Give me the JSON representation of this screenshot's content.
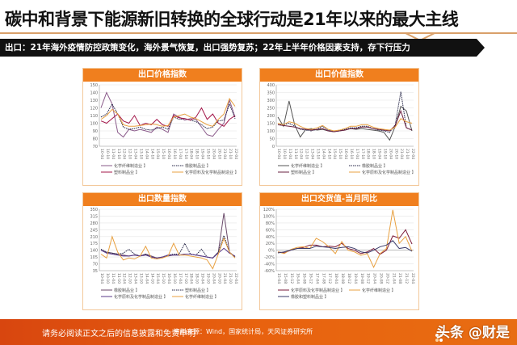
{
  "header": {
    "title": "碳中和背景下能源新旧转换的全球行动是21年以来的最大主线",
    "banner": "出口：21年海外疫情防控政策变化，海外景气恢复，出口强势复苏；22年上半年价格因素支持，存下行压力"
  },
  "colors": {
    "accent_orange": "#f07f1e",
    "banner_bg": "#111111",
    "footer_bg": "#e05a10",
    "series_fiber": "#8a5a8a",
    "series_rubber": "#222244",
    "series_plastic": "#a3174a",
    "series_raw": "#e8a040"
  },
  "panels": [
    {
      "title": "出口价格指数"
    },
    {
      "title": "出口价值指数"
    },
    {
      "title": "出口数量指数"
    },
    {
      "title": "出口交货值-当月同比"
    }
  ],
  "chart_data": [
    {
      "type": "line",
      "title": "出口价格指数",
      "ylim": [
        70,
        150
      ],
      "yticks": [
        "150",
        "140",
        "130",
        "120",
        "110",
        "100",
        "90",
        "80",
        "70"
      ],
      "x": [
        "10-04",
        "10-10",
        "11-04",
        "11-10",
        "12-04",
        "12-10",
        "13-04",
        "13-10",
        "14-04",
        "14-10",
        "15-04",
        "15-10",
        "16-04",
        "16-10",
        "17-04",
        "17-10",
        "18-04",
        "18-10",
        "19-04",
        "19-10",
        "20-04",
        "20-10",
        "21-04",
        "21-10",
        "22-04"
      ],
      "series": [
        {
          "name": "化学纤维制造业 】",
          "values": [
            120,
            140,
            125,
            88,
            82,
            92,
            90,
            92,
            90,
            88,
            95,
            92,
            88,
            112,
            108,
            104,
            106,
            105,
            95,
            85,
            83,
            92,
            100,
            130,
            108
          ]
        },
        {
          "name": "橡胶制品业 】",
          "values": [
            108,
            112,
            125,
            112,
            95,
            92,
            93,
            95,
            92,
            91,
            93,
            95,
            92,
            108,
            105,
            106,
            104,
            102,
            98,
            93,
            95,
            103,
            104,
            125,
            106
          ]
        },
        {
          "name": "塑料制品业 】",
          "values": [
            103,
            100,
            106,
            112,
            103,
            100,
            110,
            97,
            100,
            98,
            105,
            98,
            96,
            110,
            107,
            106,
            104,
            108,
            120,
            105,
            112,
            100,
            96,
            105,
            110
          ]
        },
        {
          "name": "化学原料及化学制品制造业 】",
          "values": [
            105,
            110,
            118,
            112,
            98,
            96,
            96,
            97,
            98,
            99,
            98,
            96,
            97,
            108,
            110,
            112,
            108,
            106,
            102,
            98,
            96,
            105,
            112,
            132,
            122
          ]
        }
      ],
      "legend_position": "bottom"
    },
    {
      "type": "line",
      "title": "出口价值指数",
      "ylim": [
        0,
        400
      ],
      "yticks": [
        "400",
        "350",
        "300",
        "250",
        "200",
        "150",
        "100",
        "50",
        "0"
      ],
      "x": [
        "10-04",
        "10-10",
        "11-04",
        "11-10",
        "12-04",
        "12-10",
        "13-04",
        "13-10",
        "14-04",
        "14-10",
        "15-04",
        "15-10",
        "16-04",
        "16-10",
        "17-04",
        "17-10",
        "18-04",
        "18-10",
        "19-04",
        "19-10",
        "20-04",
        "20-10",
        "21-04",
        "21-10",
        "22-04"
      ],
      "series": [
        {
          "name": "化学纤维制造业 】",
          "values": [
            190,
            130,
            295,
            140,
            60,
            110,
            115,
            105,
            110,
            100,
            95,
            100,
            105,
            115,
            110,
            115,
            110,
            105,
            100,
            90,
            40,
            130,
            260,
            230,
            100
          ]
        },
        {
          "name": "橡胶制品业 】",
          "values": [
            140,
            140,
            150,
            130,
            110,
            105,
            100,
            110,
            130,
            105,
            95,
            100,
            110,
            120,
            120,
            130,
            130,
            115,
            105,
            100,
            90,
            140,
            355,
            120,
            105
          ]
        },
        {
          "name": "塑料制品业 】",
          "values": [
            140,
            135,
            130,
            125,
            115,
            110,
            105,
            110,
            115,
            100,
            95,
            100,
            105,
            115,
            115,
            125,
            125,
            115,
            110,
            105,
            100,
            135,
            230,
            120,
            105
          ]
        },
        {
          "name": "化学原料及化学制品制造业 】",
          "values": [
            150,
            140,
            160,
            150,
            130,
            115,
            110,
            120,
            135,
            110,
            100,
            105,
            115,
            130,
            130,
            140,
            140,
            125,
            115,
            110,
            105,
            125,
            180,
            160,
            150
          ]
        }
      ],
      "legend_position": "bottom"
    },
    {
      "type": "line",
      "title": "出口数量指数",
      "ylim": [
        35,
        350
      ],
      "yticks": [
        "350",
        "315",
        "280",
        "245",
        "210",
        "175",
        "140",
        "105",
        "70",
        "35"
      ],
      "x": [
        "10-04",
        "10-10",
        "11-04",
        "11-10",
        "12-04",
        "12-10",
        "13-04",
        "13-10",
        "14-04",
        "14-10",
        "15-04",
        "15-10",
        "16-04",
        "16-10",
        "17-04",
        "17-10",
        "18-04",
        "18-10",
        "19-04",
        "19-10",
        "20-04",
        "20-10",
        "21-04",
        "21-10",
        "22-04"
      ],
      "series": [
        {
          "name": "橡胶制品业 】",
          "values": [
            140,
            130,
            125,
            120,
            115,
            110,
            115,
            110,
            120,
            110,
            100,
            105,
            110,
            115,
            115,
            120,
            120,
            115,
            110,
            105,
            100,
            130,
            330,
            130,
            105
          ]
        },
        {
          "name": "塑料制品业 】",
          "values": [
            145,
            130,
            125,
            120,
            125,
            145,
            120,
            110,
            120,
            105,
            100,
            105,
            115,
            120,
            120,
            175,
            120,
            115,
            145,
            105,
            100,
            130,
            215,
            130,
            105
          ]
        },
        {
          "name": "化学原料及化学制品制造业 】",
          "values": [
            140,
            125,
            120,
            115,
            110,
            110,
            115,
            110,
            115,
            105,
            100,
            105,
            115,
            115,
            115,
            120,
            120,
            115,
            110,
            105,
            100,
            125,
            150,
            125,
            110
          ]
        },
        {
          "name": "化学纤维制造业 】",
          "values": [
            120,
            100,
            210,
            130,
            90,
            100,
            95,
            110,
            160,
            100,
            95,
            100,
            110,
            175,
            115,
            115,
            110,
            105,
            100,
            90,
            45,
            120,
            200,
            130,
            100
          ]
        }
      ],
      "legend_position": "bottom"
    },
    {
      "type": "line",
      "title": "出口交货值-当月同比",
      "ylim": [
        -60,
        120
      ],
      "yticks": [
        "120%",
        "100%",
        "80%",
        "60%",
        "40%",
        "20%",
        "0%",
        "-20%",
        "-40%",
        "-60%"
      ],
      "x": [
        "15-04",
        "15-08",
        "15-12",
        "16-04",
        "16-08",
        "16-12",
        "17-04",
        "17-08",
        "17-12",
        "18-04",
        "18-08",
        "18-12",
        "19-04",
        "19-08",
        "19-12",
        "20-04",
        "20-08",
        "20-12",
        "21-04",
        "21-08",
        "21-12",
        "22-04"
      ],
      "series": [
        {
          "name": "化学原料及化学制品制造业 】",
          "values": [
            -5,
            -8,
            0,
            5,
            8,
            15,
            15,
            10,
            12,
            10,
            20,
            5,
            0,
            -10,
            -5,
            5,
            -12,
            0,
            42,
            35,
            60,
            18
          ]
        },
        {
          "name": "化学纤维制造业 】",
          "values": [
            -5,
            -10,
            2,
            8,
            10,
            5,
            35,
            25,
            10,
            -10,
            25,
            0,
            -5,
            -15,
            -10,
            -50,
            -10,
            5,
            118,
            20,
            40,
            -3
          ]
        },
        {
          "name": "橡胶和塑料制品业 】",
          "values": [
            -8,
            -5,
            0,
            5,
            5,
            5,
            12,
            10,
            8,
            5,
            8,
            10,
            5,
            -5,
            -8,
            0,
            10,
            15,
            28,
            5,
            8,
            -3
          ]
        }
      ],
      "legend_position": "bottom"
    }
  ],
  "footer": {
    "disclaimer": "请务必阅读正文之后的信息披露和免责申明",
    "source": "资料来源：Wind，国家统计局，天风证券研究所",
    "watermark": "头条 @财是"
  }
}
